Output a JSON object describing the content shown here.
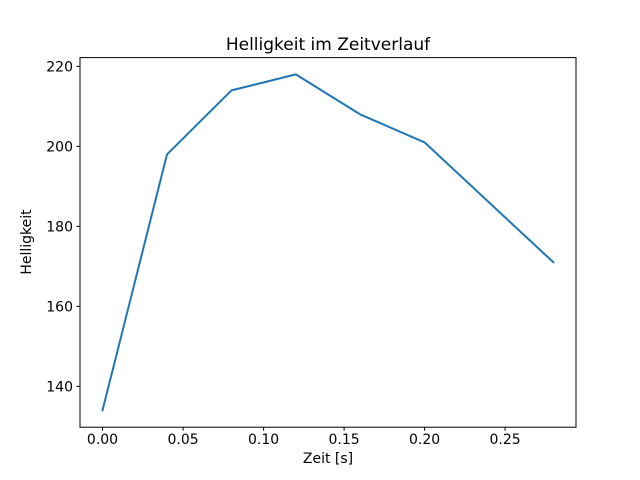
{
  "chart_data": {
    "type": "line",
    "title": "Helligkeit im Zeitverlauf",
    "xlabel": "Zeit [s]",
    "ylabel": "Helligkeit",
    "x": [
      0.0,
      0.04,
      0.08,
      0.12,
      0.16,
      0.2,
      0.24,
      0.28
    ],
    "series": [
      {
        "name": "Helligkeit",
        "values": [
          134,
          198,
          214,
          218,
          208,
          201,
          186,
          171
        ]
      }
    ],
    "xlim": [
      -0.014,
      0.294
    ],
    "ylim": [
      129.8,
      222.2
    ],
    "xticks": {
      "values": [
        0.0,
        0.05,
        0.1,
        0.15,
        0.2,
        0.25
      ],
      "labels": [
        "0.00",
        "0.05",
        "0.10",
        "0.15",
        "0.20",
        "0.25"
      ]
    },
    "yticks": {
      "values": [
        140,
        160,
        180,
        200,
        220
      ],
      "labels": [
        "140",
        "160",
        "180",
        "200",
        "220"
      ]
    },
    "line_color": "#1f77b4",
    "background_color": "#ffffff",
    "spine_color": "#000000",
    "grid": false,
    "legend": null
  }
}
